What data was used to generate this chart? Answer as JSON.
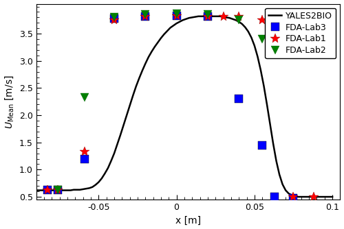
{
  "xlabel": "x [m]",
  "ylabel": "U_Mean [m/s]",
  "xlim": [
    -0.09,
    0.105
  ],
  "ylim": [
    0.45,
    4.05
  ],
  "yticks": [
    0.5,
    1.0,
    1.5,
    2.0,
    2.5,
    3.0,
    3.5
  ],
  "xticks": [
    -0.05,
    0.0,
    0.05,
    0.1
  ],
  "line_color": "black",
  "line_width": 1.8,
  "curve_x": [
    -0.09,
    -0.088,
    -0.086,
    -0.084,
    -0.082,
    -0.08,
    -0.078,
    -0.076,
    -0.074,
    -0.072,
    -0.07,
    -0.068,
    -0.066,
    -0.064,
    -0.062,
    -0.06,
    -0.058,
    -0.056,
    -0.054,
    -0.052,
    -0.05,
    -0.048,
    -0.046,
    -0.044,
    -0.042,
    -0.04,
    -0.038,
    -0.036,
    -0.034,
    -0.032,
    -0.03,
    -0.028,
    -0.026,
    -0.024,
    -0.022,
    -0.02,
    -0.018,
    -0.016,
    -0.014,
    -0.012,
    -0.01,
    -0.008,
    -0.006,
    -0.004,
    -0.002,
    0.0,
    0.002,
    0.004,
    0.006,
    0.008,
    0.01,
    0.012,
    0.014,
    0.016,
    0.018,
    0.02,
    0.022,
    0.024,
    0.026,
    0.028,
    0.03,
    0.032,
    0.034,
    0.036,
    0.038,
    0.04,
    0.042,
    0.044,
    0.046,
    0.048,
    0.05,
    0.052,
    0.054,
    0.056,
    0.058,
    0.06,
    0.062,
    0.064,
    0.066,
    0.068,
    0.07,
    0.072,
    0.074,
    0.076,
    0.078,
    0.08,
    0.082,
    0.084,
    0.086,
    0.088,
    0.09,
    0.092,
    0.094,
    0.096,
    0.098,
    0.1
  ],
  "curve_y": [
    0.62,
    0.62,
    0.62,
    0.62,
    0.62,
    0.62,
    0.62,
    0.62,
    0.62,
    0.62,
    0.62,
    0.62,
    0.63,
    0.63,
    0.63,
    0.64,
    0.65,
    0.66,
    0.68,
    0.72,
    0.77,
    0.84,
    0.93,
    1.03,
    1.16,
    1.3,
    1.47,
    1.64,
    1.82,
    2.0,
    2.18,
    2.36,
    2.53,
    2.68,
    2.82,
    2.95,
    3.07,
    3.17,
    3.26,
    3.34,
    3.42,
    3.49,
    3.55,
    3.61,
    3.65,
    3.69,
    3.72,
    3.75,
    3.77,
    3.79,
    3.8,
    3.81,
    3.82,
    3.82,
    3.82,
    3.82,
    3.82,
    3.82,
    3.82,
    3.82,
    3.81,
    3.8,
    3.79,
    3.77,
    3.75,
    3.72,
    3.68,
    3.62,
    3.54,
    3.43,
    3.28,
    3.08,
    2.83,
    2.54,
    2.2,
    1.84,
    1.48,
    1.16,
    0.91,
    0.73,
    0.62,
    0.56,
    0.53,
    0.51,
    0.5,
    0.5,
    0.5,
    0.5,
    0.5,
    0.5,
    0.5,
    0.5,
    0.5,
    0.5,
    0.5,
    0.5
  ],
  "lab1_x": [
    -0.083,
    -0.076,
    -0.059,
    -0.04,
    -0.02,
    0.0,
    0.02,
    0.03,
    0.04,
    0.055,
    0.075,
    0.088
  ],
  "lab1_y": [
    0.63,
    0.63,
    1.33,
    3.75,
    3.82,
    3.83,
    3.82,
    3.82,
    3.82,
    3.75,
    0.5,
    0.5
  ],
  "lab2_x": [
    -0.076,
    -0.059,
    -0.04,
    -0.02,
    0.0,
    0.02,
    0.04,
    0.055
  ],
  "lab2_y": [
    0.63,
    2.33,
    3.8,
    3.85,
    3.87,
    3.85,
    3.75,
    3.4
  ],
  "lab3_x": [
    -0.083,
    -0.076,
    -0.059,
    -0.04,
    -0.02,
    0.0,
    0.02,
    0.04,
    0.055,
    0.063,
    0.075
  ],
  "lab3_y": [
    0.63,
    0.63,
    1.2,
    3.78,
    3.82,
    3.83,
    3.82,
    2.3,
    1.45,
    0.5,
    0.47
  ],
  "lab1_color": "red",
  "lab2_color": "green",
  "lab3_color": "blue",
  "lab1_marker": "*",
  "lab2_marker": "v",
  "lab3_marker": "s",
  "lab1_label": "FDA-Lab1",
  "lab2_label": "FDA-Lab2",
  "lab3_label": "FDA-Lab3",
  "line_label": "YALES2BIO",
  "marker_size_star": 10,
  "marker_size_triangle": 8,
  "marker_size_square": 8
}
